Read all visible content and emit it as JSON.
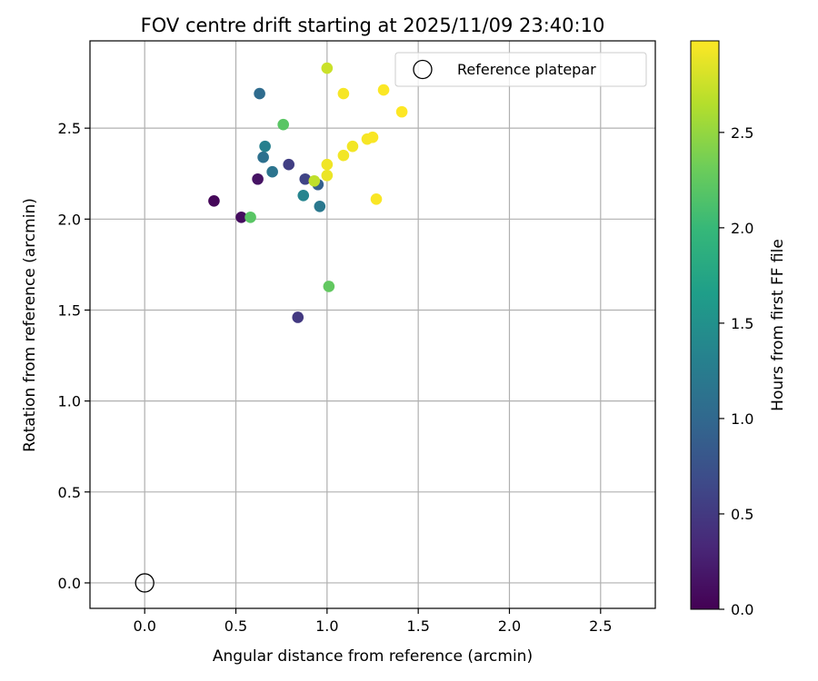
{
  "chart_data": {
    "type": "scatter",
    "title": "FOV centre drift starting at 2025/11/09 23:40:10",
    "xlabel": "Angular distance from reference (arcmin)",
    "ylabel": "Rotation from reference (arcmin)",
    "xlim": [
      -0.3,
      2.8
    ],
    "ylim": [
      -0.14,
      2.98
    ],
    "xticks": [
      0.0,
      0.5,
      1.0,
      1.5,
      2.0,
      2.5
    ],
    "xtick_labels": [
      "0.0",
      "0.5",
      "1.0",
      "1.5",
      "2.0",
      "2.5"
    ],
    "yticks": [
      0.0,
      0.5,
      1.0,
      1.5,
      2.0,
      2.5
    ],
    "ytick_labels": [
      "0.0",
      "0.5",
      "1.0",
      "1.5",
      "2.0",
      "2.5"
    ],
    "grid": true,
    "legend": {
      "position": "top-right",
      "entries": [
        {
          "label": "Reference platepar",
          "marker": "open-circle"
        }
      ]
    },
    "reference_point": {
      "x": 0.0,
      "y": 0.0,
      "label": "Reference platepar"
    },
    "colorbar": {
      "label": "Hours from first FF file",
      "colormap": "viridis",
      "range": [
        0.0,
        2.98
      ],
      "ticks": [
        0.0,
        0.5,
        1.0,
        1.5,
        2.0,
        2.5
      ],
      "tick_labels": [
        "0.0",
        "0.5",
        "1.0",
        "1.5",
        "2.0",
        "2.5"
      ]
    },
    "points": [
      {
        "x": 0.38,
        "y": 2.1,
        "hours": 0.05
      },
      {
        "x": 0.53,
        "y": 2.01,
        "hours": 0.1
      },
      {
        "x": 0.62,
        "y": 2.22,
        "hours": 0.15
      },
      {
        "x": 0.84,
        "y": 1.46,
        "hours": 0.5
      },
      {
        "x": 0.79,
        "y": 2.3,
        "hours": 0.55
      },
      {
        "x": 0.88,
        "y": 2.22,
        "hours": 0.6
      },
      {
        "x": 0.95,
        "y": 2.19,
        "hours": 0.9
      },
      {
        "x": 0.63,
        "y": 2.69,
        "hours": 1.05
      },
      {
        "x": 0.65,
        "y": 2.34,
        "hours": 1.1
      },
      {
        "x": 0.7,
        "y": 2.26,
        "hours": 1.15
      },
      {
        "x": 0.96,
        "y": 2.07,
        "hours": 1.2
      },
      {
        "x": 0.66,
        "y": 2.4,
        "hours": 1.3
      },
      {
        "x": 0.87,
        "y": 2.13,
        "hours": 1.35
      },
      {
        "x": 0.58,
        "y": 2.01,
        "hours": 2.2
      },
      {
        "x": 0.76,
        "y": 2.52,
        "hours": 2.2
      },
      {
        "x": 1.01,
        "y": 1.63,
        "hours": 2.25
      },
      {
        "x": 0.93,
        "y": 2.21,
        "hours": 2.7
      },
      {
        "x": 1.0,
        "y": 2.83,
        "hours": 2.75
      },
      {
        "x": 1.0,
        "y": 2.24,
        "hours": 2.9
      },
      {
        "x": 1.0,
        "y": 2.3,
        "hours": 2.92
      },
      {
        "x": 1.09,
        "y": 2.35,
        "hours": 2.93
      },
      {
        "x": 1.14,
        "y": 2.4,
        "hours": 2.93
      },
      {
        "x": 1.09,
        "y": 2.69,
        "hours": 2.95
      },
      {
        "x": 1.22,
        "y": 2.44,
        "hours": 2.95
      },
      {
        "x": 1.25,
        "y": 2.45,
        "hours": 2.96
      },
      {
        "x": 1.27,
        "y": 2.11,
        "hours": 2.96
      },
      {
        "x": 1.31,
        "y": 2.71,
        "hours": 2.97
      },
      {
        "x": 1.41,
        "y": 2.59,
        "hours": 2.98
      }
    ]
  }
}
